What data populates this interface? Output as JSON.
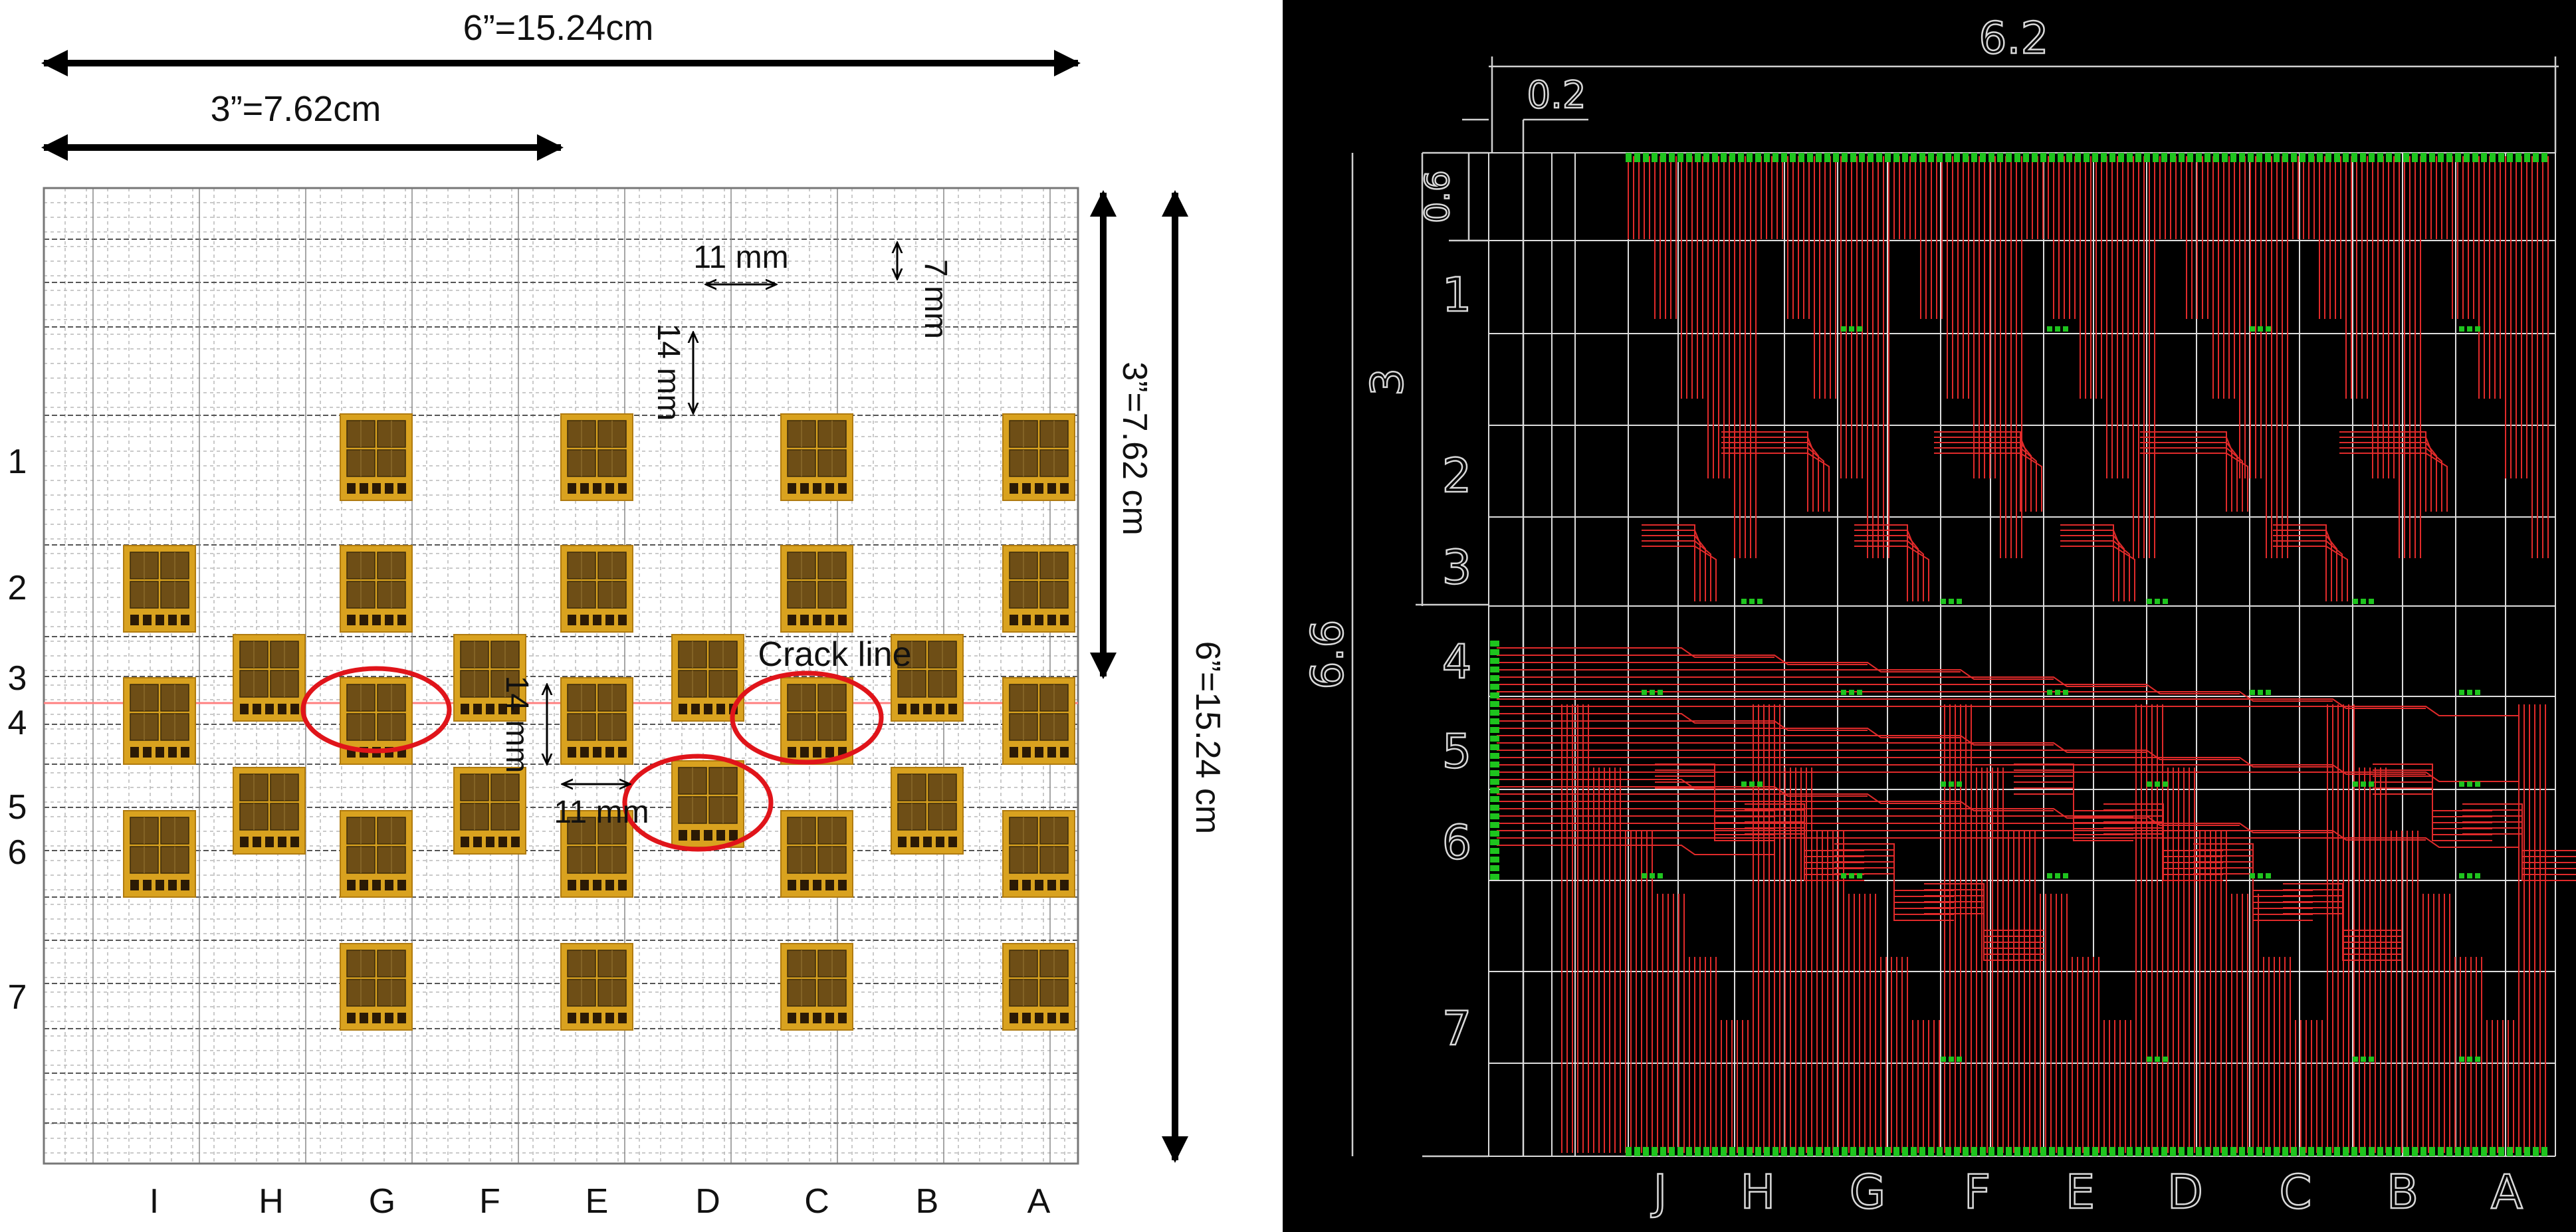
{
  "left_panel": {
    "dim_total_width": "6”=15.24cm",
    "dim_half_width": "3”=7.62cm",
    "dim_half_height": "3”=7.62 cm",
    "dim_total_height": "6”=15.24 cm",
    "dim_grid_x": "11 mm",
    "dim_grid_y": "7 mm",
    "dim_row_spacing": "14 mm",
    "dim_row_spacing_2": "14 mm",
    "dim_col_spacing_2": "11 mm",
    "crack_label": "Crack line",
    "row_labels": [
      "1",
      "2",
      "3",
      "4",
      "5",
      "6",
      "7"
    ],
    "column_labels": [
      "I",
      "H",
      "G",
      "F",
      "E",
      "D",
      "C",
      "B",
      "A"
    ],
    "colors": {
      "sensor": "#c8961a",
      "sensor_dark": "#6b4a12",
      "highlight": "#e0141a",
      "crack": "#ff8080"
    }
  },
  "right_panel": {
    "dim_width": "6.2",
    "dim_margin": "0.2",
    "dim_top": "0.6",
    "dim_half": "3",
    "dim_height": "6.6",
    "row_labels": [
      "1",
      "2",
      "3",
      "4",
      "5",
      "6",
      "7"
    ],
    "column_labels": [
      "J",
      "H",
      "G",
      "F",
      "E",
      "D",
      "C",
      "B",
      "A"
    ],
    "colors": {
      "background": "#000000",
      "grid": "#dcdcdc",
      "trace": "#e02a2a",
      "pad": "#18c418"
    }
  }
}
